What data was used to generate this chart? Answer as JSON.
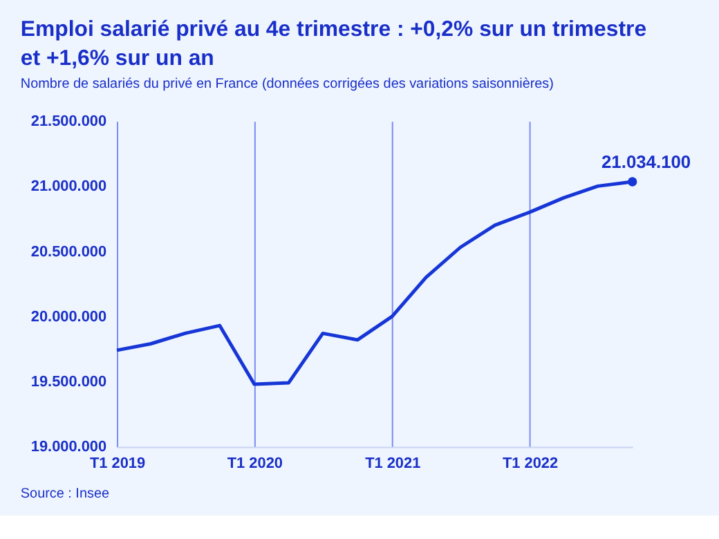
{
  "chart_data": {
    "type": "line",
    "title": "Emploi salarié privé au 4e trimestre : +0,2% sur un trimestre et +1,6% sur un an",
    "subtitle": "Nombre de salariés du privé en France (données corrigées des variations saisonnières)",
    "x": [
      "2019-01",
      "2019-04",
      "2019-07",
      "2019-10",
      "2020-01",
      "2020-04",
      "2020-07",
      "2020-10",
      "2021-01",
      "2021-04",
      "2021-07",
      "2021-10",
      "2022-01",
      "2022-04",
      "2022-07",
      "2022-10"
    ],
    "series": [
      {
        "color": "#1636d6",
        "values": [
          19740000,
          19790000,
          19870000,
          19930000,
          19480000,
          19490000,
          19870000,
          19820000,
          20000000,
          20300000,
          20530000,
          20700000,
          20800000,
          20910000,
          21000000,
          21034100
        ]
      }
    ],
    "xlim": [
      "2019-01",
      "2022-10"
    ],
    "xticks": [
      {
        "value": "2019-01",
        "label": "T1 2019"
      },
      {
        "value": "2020-01",
        "label": "T1 2020"
      },
      {
        "value": "2021-01",
        "label": "T1 2021"
      },
      {
        "value": "2022-01",
        "label": "T1 2022"
      }
    ],
    "ylim": [
      19000000,
      21500000
    ],
    "yticks": [
      {
        "value": 19000000,
        "label": "19.000.000"
      },
      {
        "value": 19500000,
        "label": "19.500.000"
      },
      {
        "value": 20000000,
        "label": "20.000.000"
      },
      {
        "value": 20500000,
        "label": "20.500.000"
      },
      {
        "value": 21000000,
        "label": "21.000.000"
      },
      {
        "value": 21500000,
        "label": "21.500.000"
      }
    ],
    "grid": "x",
    "marker": "none",
    "line_style": "solid",
    "annotations": [
      {
        "text": "21.034.100",
        "x": "2022-10",
        "y": 21034100
      },
      "Source : Insee"
    ]
  }
}
